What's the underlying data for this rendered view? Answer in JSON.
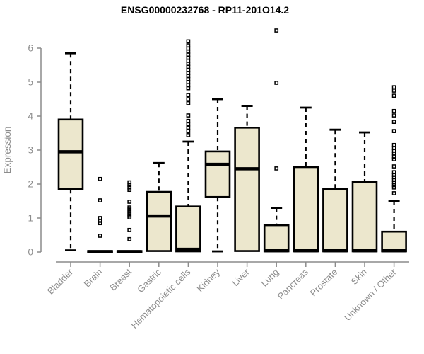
{
  "chart_data": {
    "type": "boxplot",
    "title": "ENSG00000232768 - RP11-201O14.2",
    "ylabel": "Expression",
    "ylim": [
      0,
      6.6
    ],
    "yticks": [
      0,
      1,
      2,
      3,
      4,
      5,
      6
    ],
    "grid": false,
    "legend": "none",
    "box_fill": "#ece7cd",
    "box_stroke": "#000000",
    "axis_color": "#8c8c8c",
    "categories": [
      "Bladder",
      "Brain",
      "Breast",
      "Gastric",
      "Hematopoietic cells",
      "Kidney",
      "Liver",
      "Lung",
      "Pancreas",
      "Prostate",
      "Skin",
      "Unknown / Other"
    ],
    "series": [
      {
        "name": "Bladder",
        "low": 0.05,
        "q1": 1.85,
        "median": 2.95,
        "q3": 3.9,
        "high": 5.85,
        "outliers": []
      },
      {
        "name": "Brain",
        "low": 0.0,
        "q1": 0.0,
        "median": 0.01,
        "q3": 0.03,
        "high": 0.04,
        "outliers": [
          2.15,
          1.52,
          1.0,
          0.92,
          0.85,
          0.48
        ]
      },
      {
        "name": "Breast",
        "low": 0.0,
        "q1": 0.0,
        "median": 0.01,
        "q3": 0.03,
        "high": 0.04,
        "outliers": [
          2.05,
          1.97,
          1.9,
          1.83,
          1.48,
          1.31,
          1.25,
          1.19,
          1.13,
          1.07,
          1.02,
          0.65,
          0.38
        ]
      },
      {
        "name": "Gastric",
        "low": 0.03,
        "q1": 0.03,
        "median": 1.06,
        "q3": 1.77,
        "high": 2.62,
        "outliers": []
      },
      {
        "name": "Hematopoietic cells",
        "low": 0.02,
        "q1": 0.02,
        "median": 0.08,
        "q3": 1.34,
        "high": 3.25,
        "outliers": [
          6.2,
          6.08,
          5.99,
          5.9,
          5.81,
          5.72,
          5.63,
          5.54,
          5.45,
          5.36,
          5.27,
          5.18,
          5.09,
          5.0,
          4.91,
          4.82,
          4.62,
          4.5,
          4.38,
          4.02,
          3.86,
          3.76,
          3.66,
          3.56,
          3.44
        ]
      },
      {
        "name": "Kidney",
        "low": 0.02,
        "q1": 1.62,
        "median": 2.58,
        "q3": 2.96,
        "high": 4.5,
        "outliers": []
      },
      {
        "name": "Liver",
        "low": 0.03,
        "q1": 0.03,
        "median": 2.45,
        "q3": 3.66,
        "high": 4.3,
        "outliers": []
      },
      {
        "name": "Lung",
        "low": 0.02,
        "q1": 0.02,
        "median": 0.04,
        "q3": 0.79,
        "high": 1.3,
        "outliers": [
          6.52,
          4.98,
          2.46
        ]
      },
      {
        "name": "Pancreas",
        "low": 0.02,
        "q1": 0.02,
        "median": 0.04,
        "q3": 2.5,
        "high": 4.25,
        "outliers": []
      },
      {
        "name": "Prostate",
        "low": 0.02,
        "q1": 0.02,
        "median": 0.04,
        "q3": 1.85,
        "high": 3.6,
        "outliers": []
      },
      {
        "name": "Skin",
        "low": 0.02,
        "q1": 0.02,
        "median": 0.04,
        "q3": 2.06,
        "high": 3.52,
        "outliers": []
      },
      {
        "name": "Unknown / Other",
        "low": 0.02,
        "q1": 0.02,
        "median": 0.04,
        "q3": 0.6,
        "high": 1.5,
        "outliers": [
          4.85,
          4.75,
          4.6,
          4.15,
          4.02,
          3.83,
          3.56,
          3.15,
          3.06,
          2.98,
          2.9,
          2.81,
          2.73,
          2.52,
          2.35,
          2.27,
          2.2,
          2.12,
          2.05,
          1.97,
          1.9,
          1.73
        ]
      }
    ]
  }
}
